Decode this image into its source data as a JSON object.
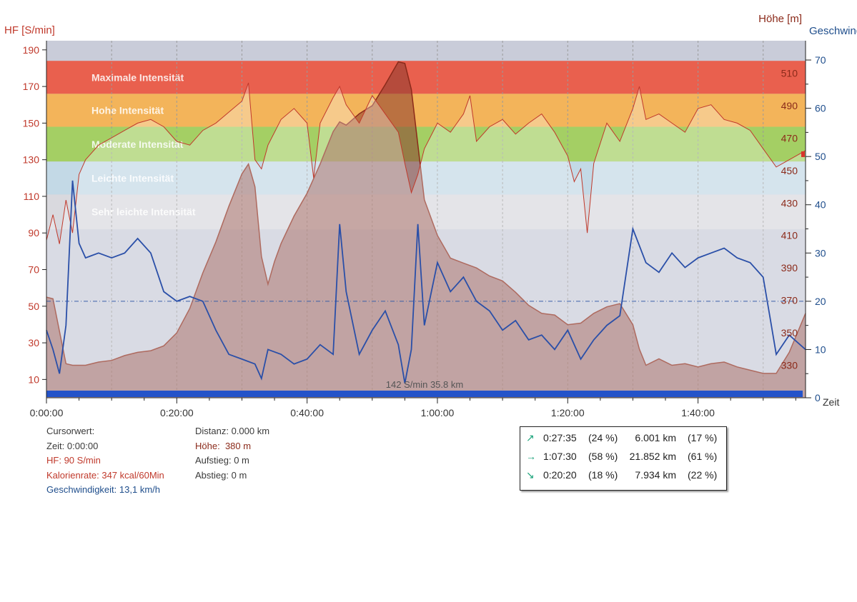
{
  "chart_data": {
    "type": "line",
    "title": "",
    "xlabel": "Zeit",
    "axes": {
      "left": {
        "label": "HF [S/min]",
        "min": 0,
        "max": 195,
        "ticks": [
          10,
          30,
          50,
          70,
          90,
          110,
          130,
          150,
          170,
          190
        ]
      },
      "right_altitude": {
        "label": "Höhe [m]",
        "min": 310,
        "max": 530,
        "ticks": [
          330,
          350,
          370,
          390,
          410,
          430,
          450,
          470,
          490,
          510
        ]
      },
      "right_speed": {
        "label": "Geschwindigkeit",
        "min": 0,
        "max": 74,
        "ticks": [
          0,
          10,
          20,
          30,
          40,
          50,
          60,
          70
        ]
      },
      "x": {
        "min_minutes": 0,
        "max_minutes": 116.5,
        "ticks": [
          "0:00:00",
          "0:20:00",
          "0:40:00",
          "1:00:00",
          "1:20:00",
          "1:40:00"
        ]
      }
    },
    "grid": true,
    "zones": [
      {
        "name": "Maximale Intensität",
        "from": 166,
        "to": 184,
        "color": "#e9604e"
      },
      {
        "name": "Hohe Intensität",
        "from": 148,
        "to": 166,
        "color": "#f3b45a"
      },
      {
        "name": "Moderate Intensität",
        "from": 129,
        "to": 148,
        "color": "#a4cf64"
      },
      {
        "name": "Leichte Intensität",
        "from": 111,
        "to": 129,
        "color": "#c3d9e6"
      },
      {
        "name": "Sehr leichte Intensität",
        "from": 92,
        "to": 111,
        "color": "#d9d9de"
      }
    ],
    "reference_line_speed": 20,
    "marker_text": "142 S/min  35.8 km",
    "series": [
      {
        "name": "HF",
        "unit": "S/min",
        "axis": "left",
        "color": "#c0392b",
        "x": [
          0,
          1,
          2,
          3,
          4,
          5,
          6,
          8,
          10,
          12,
          14,
          16,
          18,
          20,
          22,
          24,
          26,
          28,
          30,
          31,
          32,
          33,
          34,
          36,
          38,
          40,
          41,
          42,
          44,
          45,
          46,
          48,
          50,
          52,
          54,
          55,
          56,
          57,
          58,
          60,
          62,
          64,
          65,
          66,
          68,
          70,
          72,
          74,
          76,
          78,
          80,
          81,
          82,
          83,
          84,
          86,
          88,
          90,
          91,
          92,
          94,
          96,
          98,
          100,
          102,
          104,
          106,
          108,
          110,
          112,
          114,
          116.5
        ],
        "values": [
          86,
          100,
          84,
          108,
          90,
          122,
          130,
          138,
          142,
          146,
          150,
          152,
          148,
          140,
          138,
          146,
          150,
          156,
          162,
          172,
          130,
          125,
          138,
          152,
          158,
          150,
          120,
          150,
          164,
          170,
          160,
          150,
          165,
          155,
          145,
          128,
          112,
          122,
          136,
          150,
          145,
          155,
          165,
          140,
          148,
          152,
          144,
          150,
          155,
          145,
          132,
          118,
          125,
          90,
          128,
          150,
          140,
          158,
          170,
          152,
          155,
          150,
          145,
          158,
          160,
          152,
          150,
          146,
          136,
          126,
          130,
          135
        ]
      },
      {
        "name": "Höhe",
        "unit": "m",
        "axis": "right_altitude",
        "color": "#8b2a1a",
        "x": [
          0,
          1,
          2,
          3,
          4,
          6,
          8,
          10,
          12,
          14,
          16,
          18,
          20,
          22,
          24,
          26,
          28,
          30,
          31,
          32,
          33,
          34,
          35,
          36,
          38,
          40,
          42,
          44,
          45,
          46,
          48,
          50,
          52,
          53,
          54,
          55,
          56,
          57,
          58,
          60,
          62,
          64,
          66,
          68,
          70,
          72,
          74,
          76,
          78,
          80,
          82,
          84,
          86,
          88,
          90,
          91,
          92,
          94,
          96,
          98,
          100,
          102,
          104,
          106,
          108,
          110,
          112,
          114,
          116.5
        ],
        "values": [
          372,
          371,
          351,
          331,
          330,
          330,
          332,
          333,
          336,
          338,
          339,
          342,
          350,
          365,
          387,
          406,
          428,
          448,
          454,
          440,
          397,
          380,
          394,
          405,
          422,
          436,
          454,
          474,
          480,
          478,
          485,
          490,
          503,
          510,
          517,
          516,
          500,
          466,
          432,
          410,
          396,
          393,
          390,
          385,
          382,
          375,
          367,
          362,
          361,
          355,
          356,
          362,
          366,
          368,
          355,
          340,
          330,
          334,
          330,
          331,
          329,
          331,
          332,
          329,
          327,
          325,
          325,
          338,
          362
        ]
      },
      {
        "name": "Geschwindigkeit",
        "unit": "km/h",
        "axis": "right_speed",
        "color": "#2a4fa8",
        "x": [
          0,
          1,
          2,
          3,
          4,
          5,
          6,
          8,
          10,
          12,
          14,
          16,
          18,
          20,
          22,
          24,
          26,
          28,
          30,
          32,
          33,
          34,
          36,
          38,
          40,
          42,
          44,
          45,
          46,
          48,
          50,
          52,
          54,
          55,
          56,
          57,
          58,
          60,
          62,
          64,
          66,
          68,
          70,
          72,
          74,
          76,
          78,
          80,
          82,
          84,
          86,
          88,
          89,
          90,
          92,
          94,
          96,
          98,
          100,
          102,
          104,
          106,
          108,
          110,
          111,
          112,
          113,
          114,
          116.5
        ],
        "values": [
          14,
          10,
          5,
          15,
          45,
          32,
          29,
          30,
          29,
          30,
          33,
          30,
          22,
          20,
          21,
          20,
          14,
          9,
          8,
          7,
          4,
          10,
          9,
          7,
          8,
          11,
          9,
          36,
          22,
          9,
          14,
          18,
          11,
          3,
          10,
          36,
          15,
          28,
          22,
          25,
          20,
          18,
          14,
          16,
          12,
          13,
          10,
          14,
          8,
          12,
          15,
          17,
          26,
          35,
          28,
          26,
          30,
          27,
          29,
          30,
          31,
          29,
          28,
          25,
          17,
          9,
          11,
          13,
          10
        ]
      }
    ],
    "cursor": {
      "label": "Cursorwert:",
      "zeit_label": "Zeit:",
      "zeit": "0:00:00",
      "hf_label": "HF:",
      "hf": "90 S/min",
      "kalorien_label": "Kalorienrate:",
      "kalorien": "347 kcal/60Min",
      "geschw_label": "Geschwindigkeit:",
      "geschw": "13,1 km/h",
      "distanz_label": "Distanz:",
      "distanz": "0.000 km",
      "hoehe_label": "Höhe:",
      "hoehe": "380 m",
      "aufstieg_label": "Aufstieg:",
      "aufstieg": "0 m",
      "abstieg_label": "Abstieg:",
      "abstieg": "0 m"
    },
    "summary": [
      {
        "icon": "arrow-up-right",
        "glyph": "↗",
        "time": "0:27:35",
        "time_pct": "(24 %)",
        "dist": "6.001 km",
        "dist_pct": "(17 %)"
      },
      {
        "icon": "arrow-right",
        "glyph": "→",
        "time": "1:07:30",
        "time_pct": "(58 %)",
        "dist": "21.852 km",
        "dist_pct": "(61 %)"
      },
      {
        "icon": "arrow-down-right",
        "glyph": "↘",
        "time": "0:20:20",
        "time_pct": "(18 %)",
        "dist": "7.934 km",
        "dist_pct": "(22 %)"
      }
    ]
  }
}
